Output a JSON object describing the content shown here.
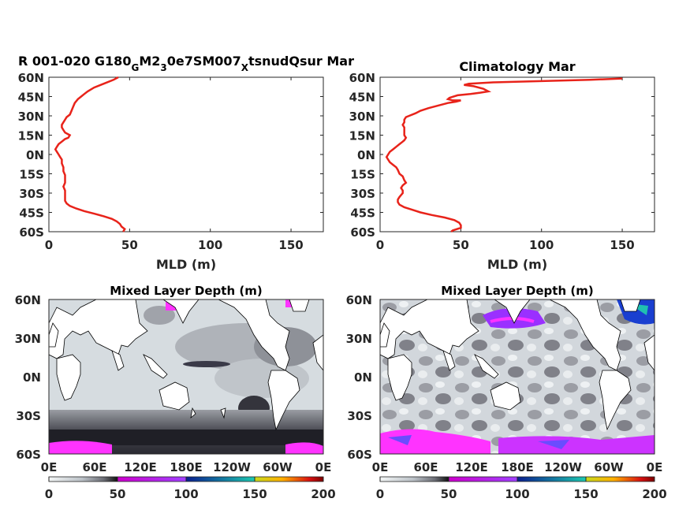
{
  "chart_data": [
    {
      "type": "line",
      "title_parts": {
        "t1": "R 001-020 G180",
        "s1": "G",
        "t2": "M2",
        "s2": "3",
        "t3": "0e7SM007",
        "s3": "X",
        "t4": "tsnudQsur Mar"
      },
      "xlabel": "MLD (m)",
      "xlim": [
        0,
        170
      ],
      "ylim": [
        -60,
        60
      ],
      "xticks": [
        0,
        50,
        100,
        150
      ],
      "yticks": [
        60,
        45,
        30,
        15,
        0,
        -15,
        -30,
        -45,
        -60
      ],
      "yticklabels": [
        "60N",
        "45N",
        "30N",
        "15N",
        "0N",
        "15S",
        "30S",
        "45S",
        "60S"
      ],
      "series": [
        {
          "color": "#e8231a",
          "points": [
            [
              43,
              60
            ],
            [
              40,
              58
            ],
            [
              34,
              55
            ],
            [
              28,
              52
            ],
            [
              24,
              49
            ],
            [
              22,
              47
            ],
            [
              20,
              45
            ],
            [
              18,
              43
            ],
            [
              16,
              40
            ],
            [
              15,
              37
            ],
            [
              14,
              34
            ],
            [
              13,
              31
            ],
            [
              11,
              29
            ],
            [
              10,
              27
            ],
            [
              9,
              25
            ],
            [
              8,
              23
            ],
            [
              8,
              21
            ],
            [
              9,
              19
            ],
            [
              10,
              17
            ],
            [
              13,
              15
            ],
            [
              12,
              13
            ],
            [
              10,
              12
            ],
            [
              8,
              10
            ],
            [
              6,
              8
            ],
            [
              5,
              6
            ],
            [
              4,
              4
            ],
            [
              5,
              2
            ],
            [
              6,
              0
            ],
            [
              7,
              -2
            ],
            [
              8,
              -4
            ],
            [
              8,
              -7
            ],
            [
              9,
              -10
            ],
            [
              9,
              -13
            ],
            [
              10,
              -16
            ],
            [
              10,
              -19
            ],
            [
              10,
              -22
            ],
            [
              9,
              -25
            ],
            [
              10,
              -28
            ],
            [
              10,
              -31
            ],
            [
              10,
              -34
            ],
            [
              10,
              -36
            ],
            [
              11,
              -38
            ],
            [
              13,
              -40
            ],
            [
              17,
              -42
            ],
            [
              22,
              -44
            ],
            [
              28,
              -46
            ],
            [
              34,
              -48
            ],
            [
              39,
              -50
            ],
            [
              42,
              -52
            ],
            [
              44,
              -54
            ],
            [
              45,
              -56
            ],
            [
              47,
              -58
            ],
            [
              46,
              -60
            ]
          ]
        }
      ]
    },
    {
      "type": "line",
      "title": "Climatology Mar",
      "xlabel": "MLD (m)",
      "xlim": [
        0,
        170
      ],
      "ylim": [
        -60,
        60
      ],
      "xticks": [
        0,
        50,
        100,
        150
      ],
      "yticks": [
        60,
        45,
        30,
        15,
        0,
        -15,
        -30,
        -45,
        -60
      ],
      "yticklabels": [
        "60N",
        "45N",
        "30N",
        "15N",
        "0N",
        "15S",
        "30S",
        "45S",
        "60S"
      ],
      "series": [
        {
          "color": "#e8231a",
          "points": [
            [
              150,
              59
            ],
            [
              130,
              58
            ],
            [
              100,
              57
            ],
            [
              70,
              56
            ],
            [
              55,
              55
            ],
            [
              52,
              54
            ],
            [
              58,
              53
            ],
            [
              64,
              51
            ],
            [
              67,
              49
            ],
            [
              62,
              48
            ],
            [
              56,
              47
            ],
            [
              48,
              46
            ],
            [
              43,
              44
            ],
            [
              42,
              43
            ],
            [
              45,
              42
            ],
            [
              50,
              42
            ],
            [
              47,
              41
            ],
            [
              42,
              40
            ],
            [
              36,
              38
            ],
            [
              30,
              36
            ],
            [
              25,
              34
            ],
            [
              22,
              32
            ],
            [
              18,
              30
            ],
            [
              16,
              29
            ],
            [
              15,
              27
            ],
            [
              15,
              25
            ],
            [
              14,
              23
            ],
            [
              15,
              21
            ],
            [
              15,
              19
            ],
            [
              15,
              17
            ],
            [
              15,
              15
            ],
            [
              16,
              13
            ],
            [
              15,
              11
            ],
            [
              14,
              10
            ],
            [
              12,
              8
            ],
            [
              10,
              6
            ],
            [
              8,
              4
            ],
            [
              6,
              2
            ],
            [
              5,
              0
            ],
            [
              4,
              -2
            ],
            [
              5,
              -4
            ],
            [
              6,
              -6
            ],
            [
              8,
              -8
            ],
            [
              10,
              -10
            ],
            [
              11,
              -12
            ],
            [
              12,
              -15
            ],
            [
              14,
              -17
            ],
            [
              15,
              -20
            ],
            [
              16,
              -22
            ],
            [
              14,
              -24
            ],
            [
              13,
              -26
            ],
            [
              14,
              -28
            ],
            [
              14,
              -30
            ],
            [
              12,
              -33
            ],
            [
              11,
              -35
            ],
            [
              11,
              -37
            ],
            [
              12,
              -39
            ],
            [
              15,
              -41
            ],
            [
              20,
              -43
            ],
            [
              25,
              -45
            ],
            [
              32,
              -47
            ],
            [
              40,
              -49
            ],
            [
              46,
              -51
            ],
            [
              49,
              -53
            ],
            [
              50,
              -55
            ],
            [
              50,
              -57
            ],
            [
              45,
              -59
            ],
            [
              44,
              -60
            ]
          ]
        }
      ]
    },
    {
      "type": "heatmap",
      "title": "Mixed Layer Depth (m)",
      "xticklabels": [
        "0E",
        "60E",
        "120E",
        "180E",
        "120W",
        "60W",
        "0E"
      ],
      "yticklabels": [
        "60N",
        "30N",
        "0N",
        "30S",
        "60S"
      ],
      "colorbar": {
        "range": [
          0,
          200
        ],
        "ticks": [
          "0",
          "50",
          "100",
          "150",
          "200"
        ]
      }
    },
    {
      "type": "heatmap",
      "title": "Mixed Layer Depth (m)",
      "xticklabels": [
        "0E",
        "60E",
        "120E",
        "180E",
        "120W",
        "60W",
        "0E"
      ],
      "yticklabels": [
        "60N",
        "30N",
        "0N",
        "30S",
        "60S"
      ],
      "colorbar": {
        "range": [
          0,
          200
        ],
        "ticks": [
          "0",
          "50",
          "100",
          "150",
          "200"
        ]
      }
    }
  ],
  "colors": {
    "line": "#e8231a",
    "map_base": "#d9dfe3",
    "map_mid": "#8c8f96",
    "map_deep": "#23232a",
    "magenta": "#ff2bff",
    "purple": "#8a3cff",
    "blue": "#1848d0",
    "land": "#ffffff"
  }
}
